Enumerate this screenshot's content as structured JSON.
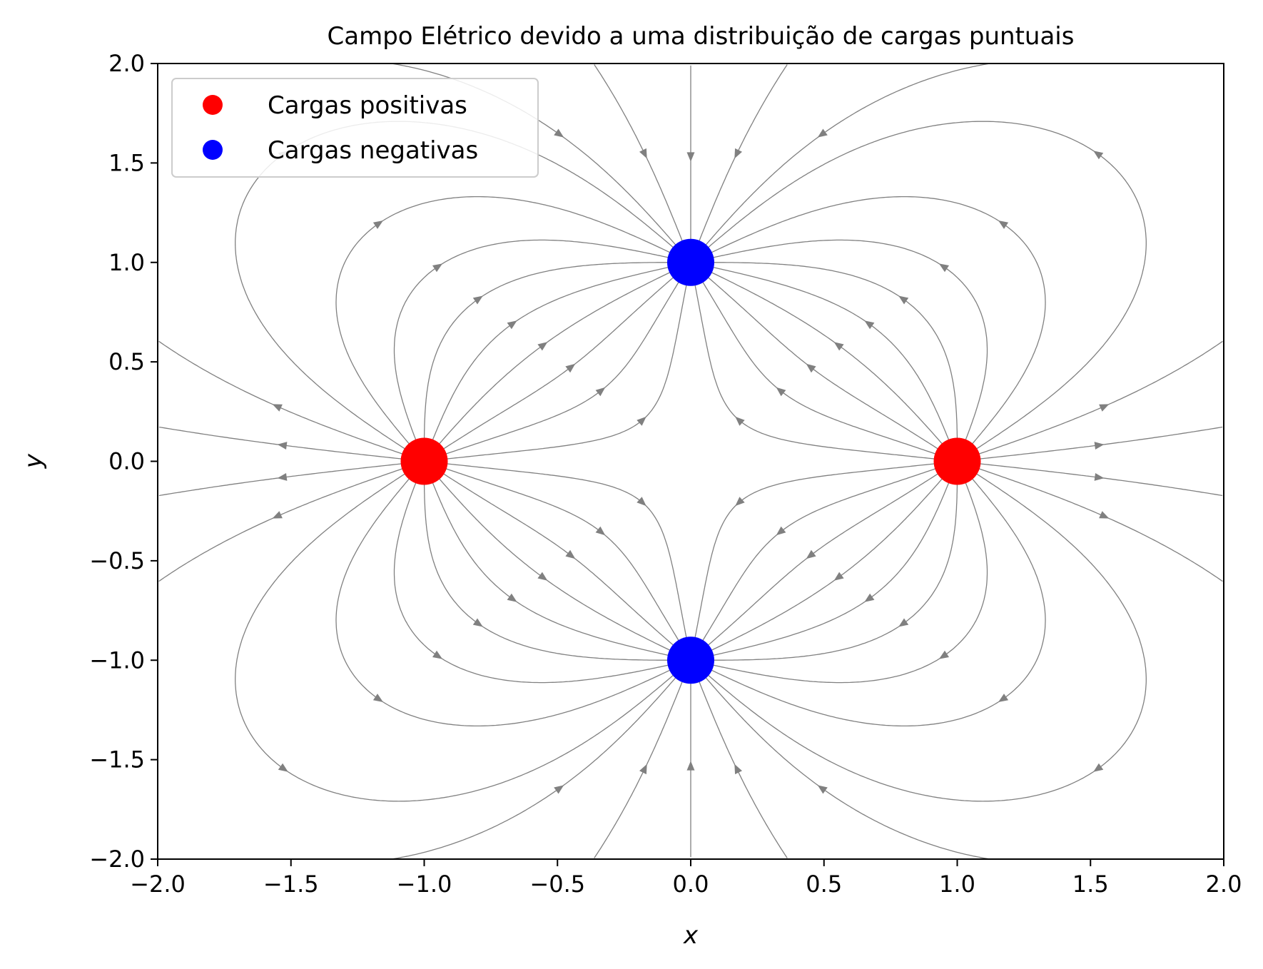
{
  "chart_data": {
    "type": "streamplot",
    "title": "Campo Elétrico devido a uma distribuição de cargas puntuais",
    "xlabel": "x",
    "ylabel": "y",
    "xlim": [
      -2.0,
      2.0
    ],
    "ylim": [
      -2.0,
      2.0
    ],
    "xticks": [
      -2.0,
      -1.5,
      -1.0,
      -0.5,
      0.0,
      0.5,
      1.0,
      1.5,
      2.0
    ],
    "yticks": [
      -2.0,
      -1.5,
      -1.0,
      -0.5,
      0.0,
      0.5,
      1.0,
      1.5,
      2.0
    ],
    "xtick_labels": [
      "−2.0",
      "−1.5",
      "−1.0",
      "−0.5",
      "0.0",
      "0.5",
      "1.0",
      "1.5",
      "2.0"
    ],
    "ytick_labels": [
      "−2.0",
      "−1.5",
      "−1.0",
      "−0.5",
      "0.0",
      "0.5",
      "1.0",
      "1.5",
      "2.0"
    ],
    "grid": false,
    "legend_position": "top-left",
    "stream_color": "#808080",
    "series": [
      {
        "name": "Cargas positivas",
        "color": "#ff0000",
        "charge": 1,
        "points": [
          {
            "x": -1.0,
            "y": 0.0
          },
          {
            "x": 1.0,
            "y": 0.0
          }
        ]
      },
      {
        "name": "Cargas negativas",
        "color": "#0000ff",
        "charge": -1,
        "points": [
          {
            "x": 0.0,
            "y": 1.0
          },
          {
            "x": 0.0,
            "y": -1.0
          }
        ]
      }
    ]
  }
}
